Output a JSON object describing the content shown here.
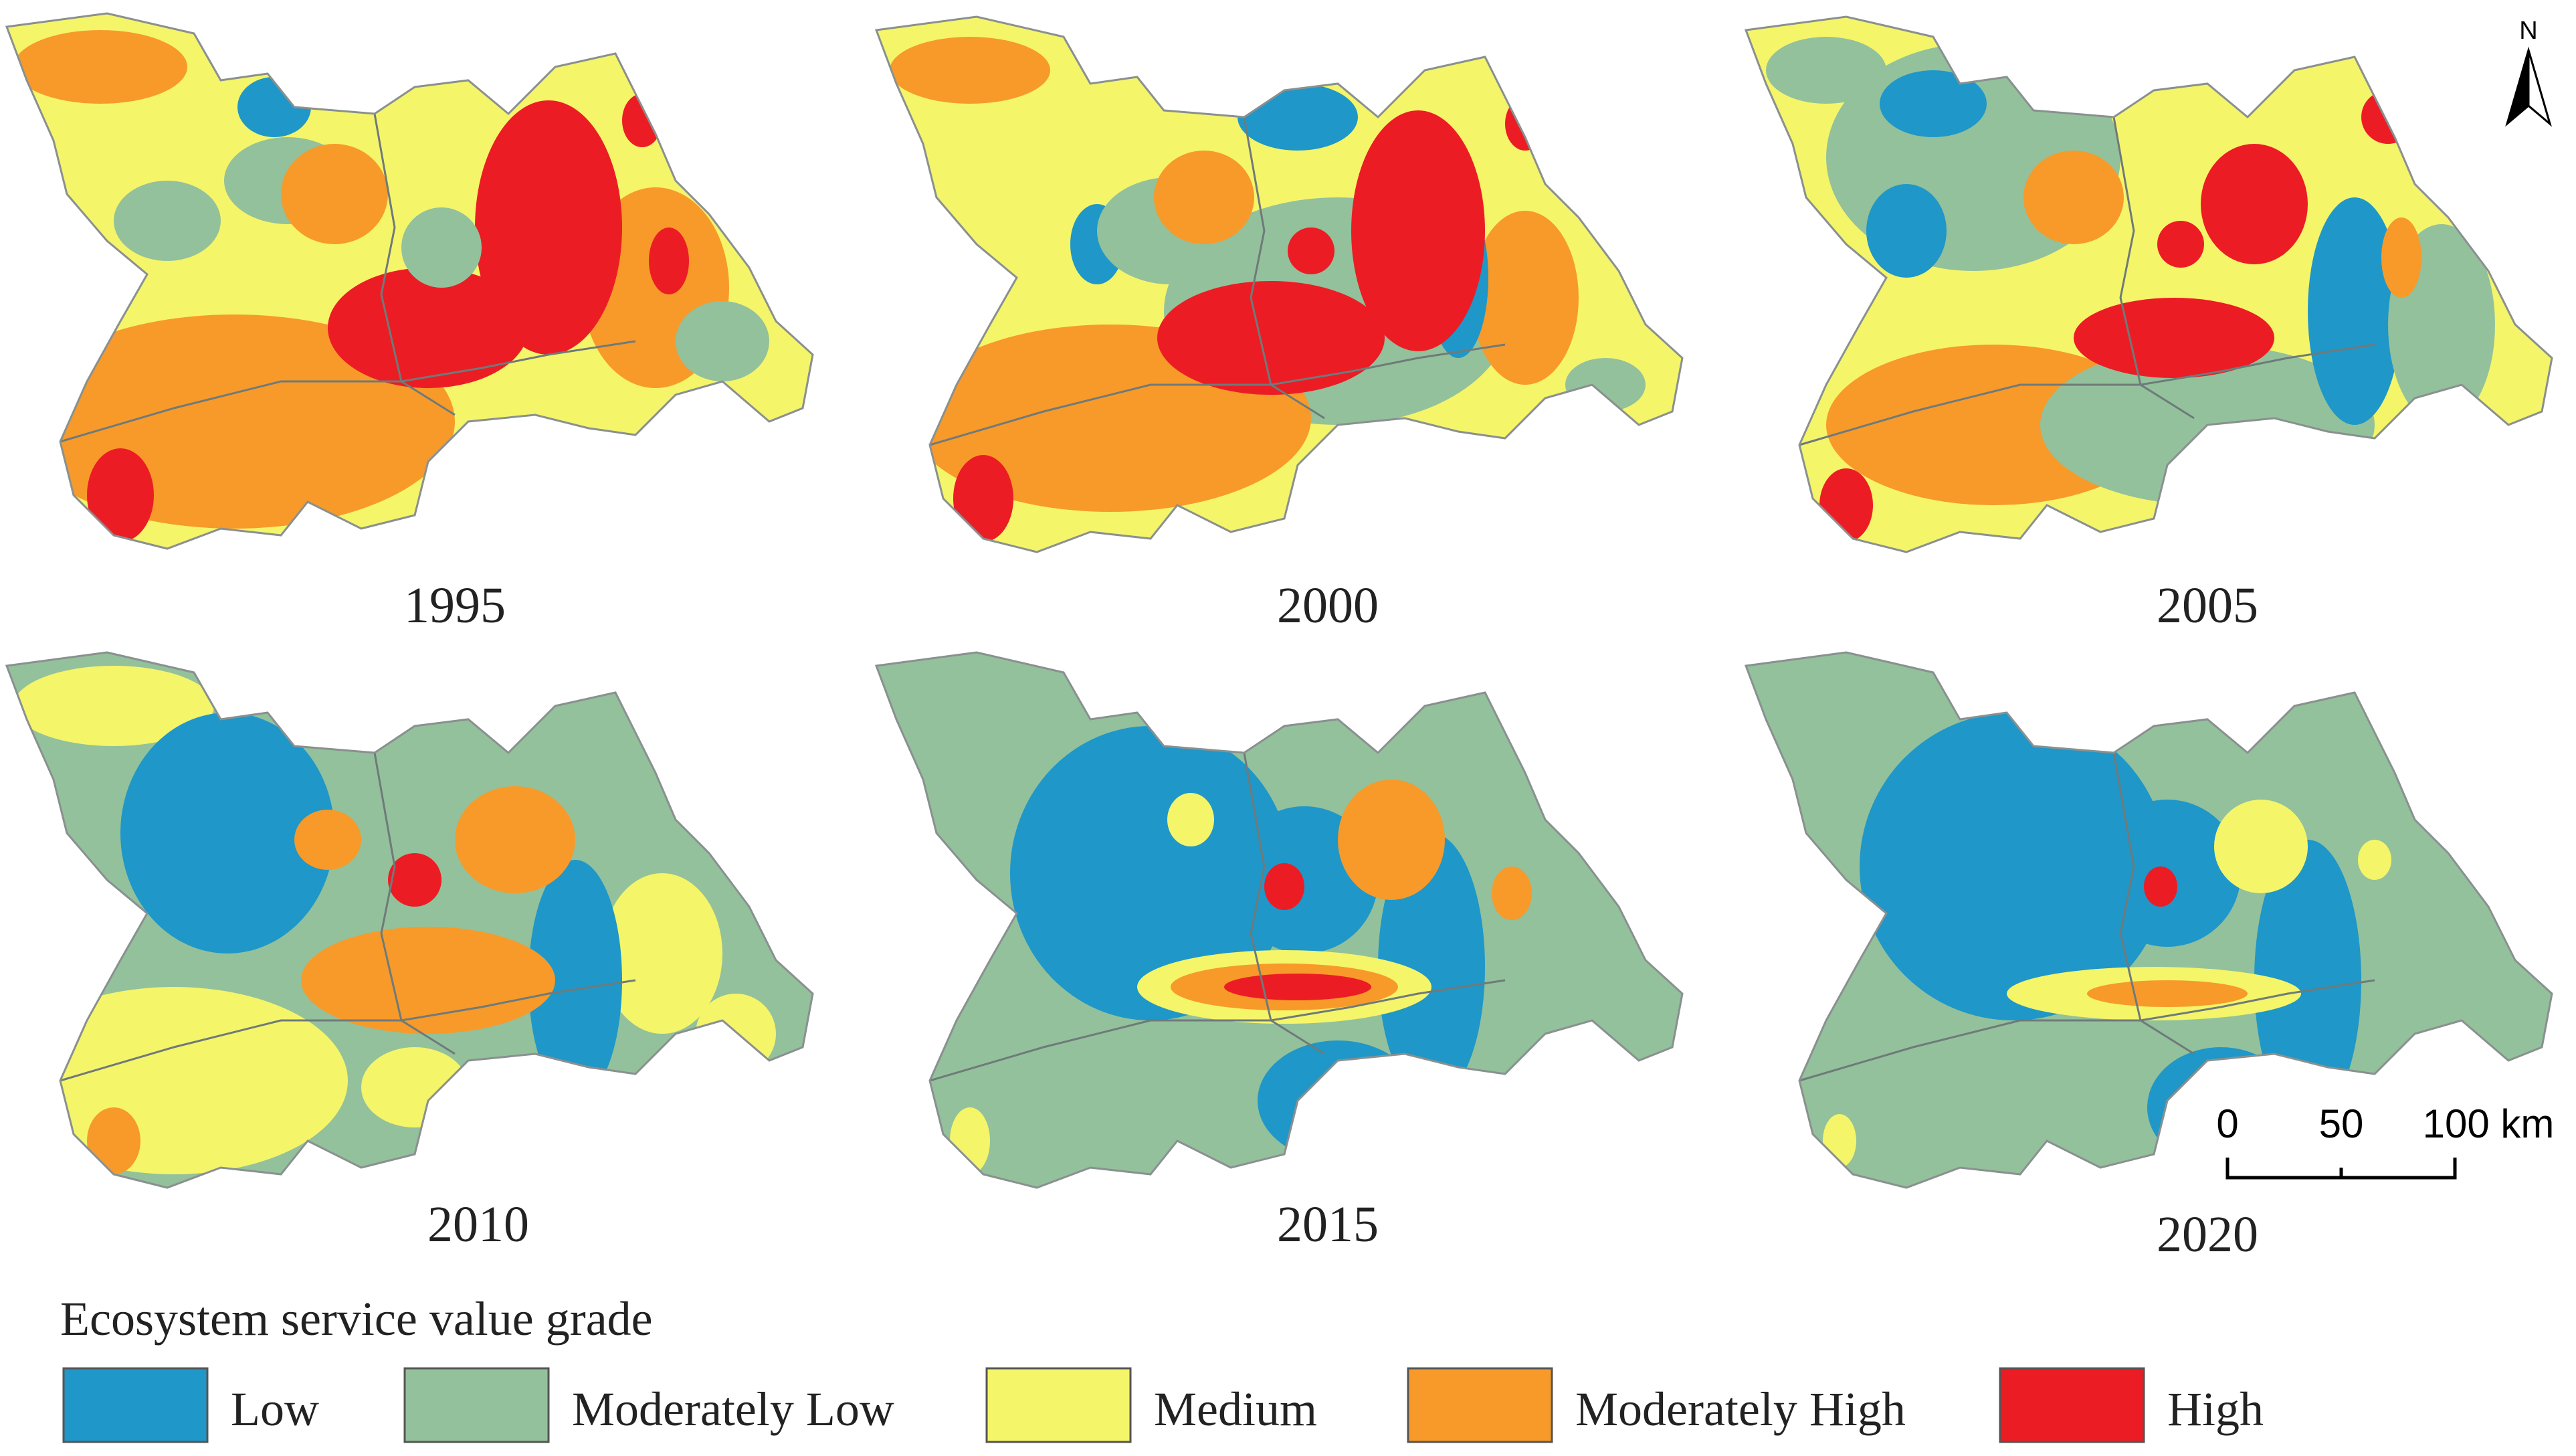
{
  "figure": {
    "panels": [
      {
        "year": "1995",
        "variant": 0
      },
      {
        "year": "2000",
        "variant": 1
      },
      {
        "year": "2005",
        "variant": 2
      },
      {
        "year": "2010",
        "variant": 3
      },
      {
        "year": "2015",
        "variant": 4
      },
      {
        "year": "2020",
        "variant": 5
      }
    ]
  },
  "legend": {
    "title": "Ecosystem service value grade",
    "items": [
      {
        "label": "Low",
        "color": "#1f97c8"
      },
      {
        "label": "Moderately Low",
        "color": "#93c19b"
      },
      {
        "label": "Medium",
        "color": "#f5f56a"
      },
      {
        "label": "Moderately High",
        "color": "#f79a2a"
      },
      {
        "label": "High",
        "color": "#ec1c24"
      }
    ]
  },
  "scale_bar": {
    "ticks": [
      "0",
      "50",
      "100 km"
    ]
  },
  "north_arrow": {
    "label": "N",
    "icon": "north-arrow-icon"
  }
}
